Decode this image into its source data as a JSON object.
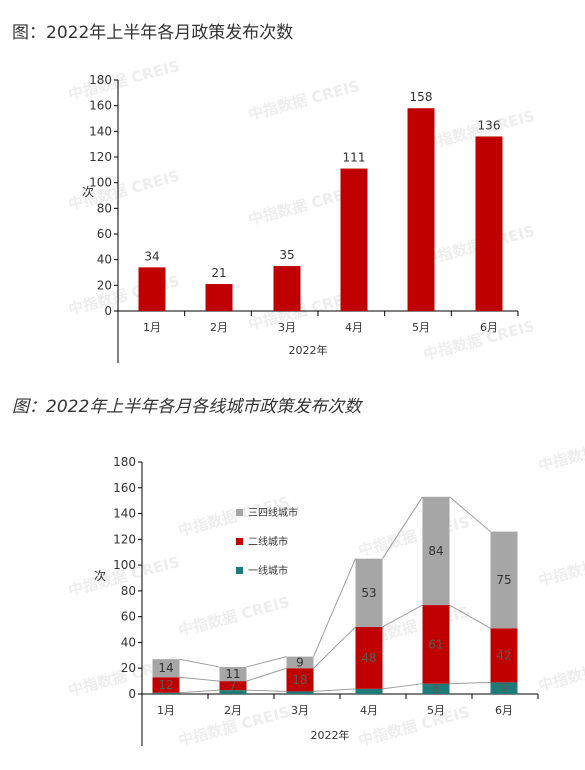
{
  "figures": [
    {
      "title": "图：2022年上半年各月政策发布次数"
    },
    {
      "title": "图：2022年上半年各月各线城市政策发布次数"
    }
  ],
  "watermark": "中指数据 CREIS",
  "chart_data": [
    {
      "type": "bar",
      "title": "图：2022年上半年各月政策发布次数",
      "categories": [
        "1月",
        "2月",
        "3月",
        "4月",
        "5月",
        "6月"
      ],
      "values": [
        34,
        21,
        35,
        111,
        158,
        136
      ],
      "xlabel": "2022年",
      "ylabel": "次",
      "ylim": [
        0,
        180
      ],
      "yticks": [
        0,
        20,
        40,
        60,
        80,
        100,
        120,
        140,
        160,
        180
      ],
      "colors": {
        "bar": "#c00000"
      },
      "grid": false,
      "data_labels": true
    },
    {
      "type": "bar",
      "stacked": true,
      "title": "图：2022年上半年各月各线城市政策发布次数",
      "categories": [
        "1月",
        "2月",
        "3月",
        "4月",
        "5月",
        "6月"
      ],
      "series": [
        {
          "name": "一线城市",
          "values": [
            1,
            3,
            2,
            4,
            8,
            9
          ],
          "color": "#1f7a7a"
        },
        {
          "name": "二线城市",
          "values": [
            12,
            7,
            18,
            48,
            61,
            42
          ],
          "color": "#c00000"
        },
        {
          "name": "三四线城市",
          "values": [
            14,
            11,
            9,
            53,
            84,
            75
          ],
          "color": "#a6a6a6"
        }
      ],
      "xlabel": "2022年",
      "ylabel": "次",
      "ylim": [
        0,
        180
      ],
      "yticks": [
        0,
        20,
        40,
        60,
        80,
        100,
        120,
        140,
        160,
        180
      ],
      "legend": "left",
      "grid": false,
      "series_lines": true,
      "data_labels": true
    }
  ]
}
